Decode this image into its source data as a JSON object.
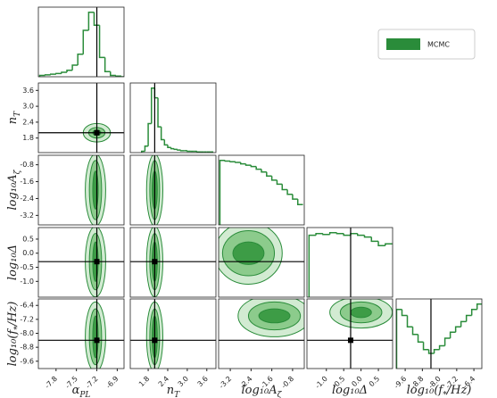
{
  "chart_data": {
    "type": "corner",
    "legend": {
      "label": "MCMC",
      "color": "#2a8c3a",
      "position": "upper right"
    },
    "line_color": "#2a8c3a",
    "level_colors": [
      "#3d9c46",
      "#8ccb8c",
      "#d2ebd2"
    ],
    "params": [
      {
        "label": {
          "main": "α",
          "sub": "PL"
        },
        "lim": [
          -8.06,
          -6.8
        ],
        "ticks": [
          -7.8,
          -7.5,
          -7.2,
          -6.9
        ],
        "truth": -7.2,
        "bins": [
          -8.04,
          -7.96,
          -7.88,
          -7.8,
          -7.72,
          -7.64,
          -7.56,
          -7.48,
          -7.4,
          -7.32,
          -7.24,
          -7.16,
          -7.08,
          -7.0,
          -6.92,
          -6.84,
          -6.76
        ],
        "counts": [
          0.02,
          0.03,
          0.04,
          0.05,
          0.07,
          0.1,
          0.18,
          0.35,
          0.72,
          1.0,
          0.8,
          0.3,
          0.08,
          0.02,
          0.01,
          0.0
        ],
        "joint": []
      },
      {
        "label": {
          "main": "n",
          "sub": "T"
        },
        "lim": [
          1.25,
          3.88
        ],
        "ticks": [
          1.8,
          2.4,
          {
            "value": 3,
            "label": "3.0"
          },
          3.6
        ],
        "truth": 2.0,
        "bins": [
          1.6,
          1.7,
          1.8,
          1.9,
          2.0,
          2.1,
          2.2,
          2.3,
          2.4,
          2.5,
          2.6,
          2.7,
          2.8,
          2.9,
          3.0,
          3.1,
          3.2,
          3.3,
          3.4,
          3.5,
          3.6,
          3.7,
          3.8
        ],
        "counts": [
          0.02,
          0.1,
          0.45,
          1.0,
          0.85,
          0.4,
          0.2,
          0.12,
          0.08,
          0.06,
          0.05,
          0.04,
          0.03,
          0.03,
          0.02,
          0.02,
          0.02,
          0.01,
          0.01,
          0.01,
          0.01,
          0.01
        ],
        "joint": [
          [
            {
              "cx": -7.2,
              "cy": 2.0,
              "rx": 0.06,
              "ry": 0.1
            },
            {
              "cx": -7.2,
              "cy": 2.0,
              "rx": 0.12,
              "ry": 0.2
            },
            {
              "cx": -7.2,
              "cy": 2.0,
              "rx": 0.2,
              "ry": 0.35
            }
          ]
        ]
      },
      {
        "label": {
          "main": "log₁₀A",
          "sub": "ζ"
        },
        "lim": [
          -3.65,
          -0.35
        ],
        "ticks": [
          -3.2,
          -2.4,
          -1.6,
          -0.8
        ],
        "truth": null,
        "bins": [
          -3.6,
          -3.4,
          -3.2,
          -3.0,
          -2.8,
          -2.6,
          -2.4,
          -2.2,
          -2.0,
          -1.8,
          -1.6,
          -1.4,
          -1.2,
          -1.0,
          -0.8,
          -0.6,
          -0.4
        ],
        "counts": [
          0.95,
          0.94,
          0.93,
          0.92,
          0.9,
          0.88,
          0.86,
          0.82,
          0.78,
          0.72,
          0.66,
          0.6,
          0.52,
          0.45,
          0.38,
          0.3
        ],
        "joint": [
          [
            {
              "cx": -7.22,
              "cy": -2.0,
              "rx": 0.04,
              "ry": 0.9
            },
            {
              "cx": -7.22,
              "cy": -2.0,
              "rx": 0.09,
              "ry": 1.4
            },
            {
              "cx": -7.22,
              "cy": -2.0,
              "rx": 0.15,
              "ry": 1.7
            }
          ],
          [
            {
              "cx": 2.0,
              "cy": -2.0,
              "rx": 0.08,
              "ry": 0.9
            },
            {
              "cx": 2.0,
              "cy": -2.0,
              "rx": 0.15,
              "ry": 1.4
            },
            {
              "cx": 2.0,
              "cy": -2.0,
              "rx": 0.25,
              "ry": 1.7
            }
          ]
        ]
      },
      {
        "label": {
          "main": "log₁₀Δ"
        },
        "lim": [
          -1.56,
          0.91
        ],
        "ticks": [
          {
            "value": -1,
            "label": "-1.0"
          },
          -0.5,
          {
            "value": 0,
            "label": "0.0"
          },
          0.5
        ],
        "truth": -0.3,
        "bins": [
          -1.5,
          -1.3,
          -1.1,
          -0.9,
          -0.7,
          -0.5,
          -0.3,
          -0.1,
          0.1,
          0.3,
          0.5,
          0.7,
          0.9
        ],
        "counts": [
          0.72,
          0.74,
          0.73,
          0.75,
          0.74,
          0.72,
          0.74,
          0.72,
          0.7,
          0.65,
          0.6,
          0.62
        ],
        "joint": [
          [
            {
              "cx": -7.22,
              "cy": -0.3,
              "rx": 0.04,
              "ry": 0.7
            },
            {
              "cx": -7.22,
              "cy": -0.3,
              "rx": 0.09,
              "ry": 1.0
            },
            {
              "cx": -7.22,
              "cy": -0.3,
              "rx": 0.15,
              "ry": 1.25
            }
          ],
          [
            {
              "cx": 2.0,
              "cy": -0.3,
              "rx": 0.08,
              "ry": 0.7
            },
            {
              "cx": 2.0,
              "cy": -0.3,
              "rx": 0.15,
              "ry": 1.0
            },
            {
              "cx": 2.0,
              "cy": -0.3,
              "rx": 0.25,
              "ry": 1.25
            }
          ],
          [
            {
              "cx": -2.5,
              "cy": 0.0,
              "rx": 0.6,
              "ry": 0.4
            },
            {
              "cx": -2.5,
              "cy": 0.0,
              "rx": 1.0,
              "ry": 0.8
            },
            {
              "cx": -2.5,
              "cy": 0.0,
              "rx": 1.3,
              "ry": 1.1
            }
          ]
        ]
      },
      {
        "label": {
          "main": "log₁₀(f",
          "sub": "*",
          "tail": "/Hz)"
        },
        "lim": [
          -10.02,
          -6.03
        ],
        "ticks": [
          -9.6,
          -8.8,
          {
            "value": -8,
            "label": "-8.0"
          },
          -7.2,
          -6.4
        ],
        "truth": -8.4,
        "bins": [
          -10.0,
          -9.75,
          -9.5,
          -9.25,
          -9.0,
          -8.75,
          -8.5,
          -8.25,
          -8.0,
          -7.75,
          -7.5,
          -7.25,
          -7.0,
          -6.75,
          -6.5,
          -6.25,
          -6.0
        ],
        "counts": [
          0.78,
          0.7,
          0.55,
          0.45,
          0.35,
          0.25,
          0.2,
          0.25,
          0.3,
          0.4,
          0.48,
          0.55,
          0.62,
          0.7,
          0.78,
          0.85
        ],
        "joint": [
          [
            {
              "cx": -7.22,
              "cy": -8.2,
              "rx": 0.04,
              "ry": 1.2
            },
            {
              "cx": -7.22,
              "cy": -8.2,
              "rx": 0.09,
              "ry": 1.6
            },
            {
              "cx": -7.22,
              "cy": -8.2,
              "rx": 0.15,
              "ry": 2.0
            }
          ],
          [
            {
              "cx": 2.0,
              "cy": -8.2,
              "rx": 0.08,
              "ry": 1.2
            },
            {
              "cx": 2.0,
              "cy": -8.2,
              "rx": 0.15,
              "ry": 1.6
            },
            {
              "cx": 2.0,
              "cy": -8.2,
              "rx": 0.25,
              "ry": 2.0
            }
          ],
          [
            {
              "cx": -1.5,
              "cy": -7.0,
              "rx": 0.6,
              "ry": 0.4
            },
            {
              "cx": -1.5,
              "cy": -7.0,
              "rx": 1.0,
              "ry": 0.8
            },
            {
              "cx": -1.5,
              "cy": -7.0,
              "rx": 1.4,
              "ry": 1.2
            }
          ],
          [
            {
              "cx": 0.0,
              "cy": -6.8,
              "rx": 0.3,
              "ry": 0.3
            },
            {
              "cx": 0.0,
              "cy": -6.8,
              "rx": 0.6,
              "ry": 0.6
            },
            {
              "cx": 0.0,
              "cy": -6.8,
              "rx": 0.9,
              "ry": 0.9
            }
          ]
        ]
      }
    ]
  }
}
